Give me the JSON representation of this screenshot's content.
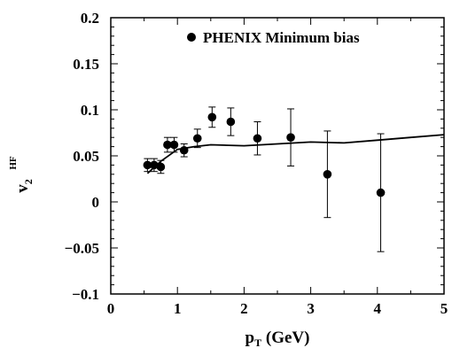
{
  "chart_data": {
    "type": "scatter",
    "xlim": [
      0,
      5
    ],
    "ylim": [
      -0.1,
      0.2
    ],
    "x_ticks": [
      0,
      1,
      2,
      3,
      4,
      5
    ],
    "x_tick_labels": [
      "0",
      "1",
      "2",
      "3",
      "4",
      "5"
    ],
    "y_ticks": [
      -0.1,
      -0.05,
      0,
      0.05,
      0.1,
      0.15,
      0.2
    ],
    "y_tick_labels": [
      "−0.1",
      "−0.05",
      "0",
      "0.05",
      "0.1",
      "0.15",
      "0.2"
    ],
    "xlabel": {
      "main": "p",
      "sub": "T",
      "unit": " (GeV)"
    },
    "ylabel": {
      "main": "v",
      "sub": "2",
      "sup": "HF"
    },
    "grid": false,
    "legend_position": "top-right",
    "legend": [
      {
        "marker": "filled-circle",
        "label": "PHENIX Minimum bias"
      }
    ],
    "series": [
      {
        "name": "PHENIX Minimum bias",
        "type": "scatter",
        "marker": "filled-circle",
        "color": "#000000",
        "points": [
          {
            "x": 0.55,
            "y": 0.04,
            "err": 0.007
          },
          {
            "x": 0.65,
            "y": 0.04,
            "err": 0.007
          },
          {
            "x": 0.75,
            "y": 0.038,
            "err": 0.007
          },
          {
            "x": 0.85,
            "y": 0.062,
            "err": 0.008
          },
          {
            "x": 0.95,
            "y": 0.062,
            "err": 0.008
          },
          {
            "x": 1.1,
            "y": 0.056,
            "err": 0.007
          },
          {
            "x": 1.3,
            "y": 0.069,
            "err": 0.01
          },
          {
            "x": 1.52,
            "y": 0.092,
            "err": 0.011
          },
          {
            "x": 1.8,
            "y": 0.087,
            "err": 0.015
          },
          {
            "x": 2.2,
            "y": 0.069,
            "err": 0.018
          },
          {
            "x": 2.7,
            "y": 0.07,
            "err": 0.031
          },
          {
            "x": 3.25,
            "y": 0.03,
            "err": 0.047
          },
          {
            "x": 4.05,
            "y": 0.01,
            "err": 0.064
          }
        ]
      },
      {
        "type": "line",
        "color": "#000000",
        "x": [
          0.55,
          0.75,
          1.0,
          1.25,
          1.5,
          2.0,
          2.5,
          3.0,
          3.5,
          4.0,
          4.5,
          5.0
        ],
        "y": [
          0.031,
          0.044,
          0.057,
          0.06,
          0.062,
          0.061,
          0.063,
          0.065,
          0.064,
          0.067,
          0.07,
          0.073
        ]
      }
    ]
  }
}
